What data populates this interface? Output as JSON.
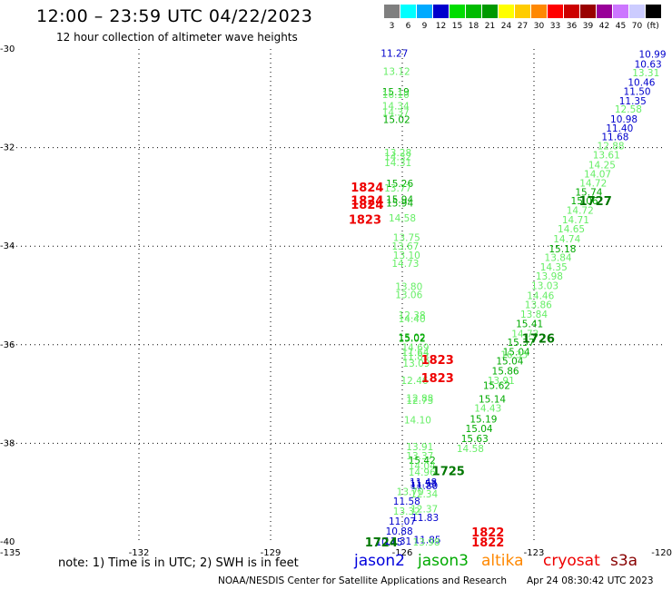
{
  "header": {
    "title": "12:00 – 23:59 UTC 04/22/2023",
    "subtitle": "12 hour collection of altimeter wave heights"
  },
  "scale": {
    "unit": "(ft)",
    "bins": [
      {
        "label": "3",
        "color": "#7f7f7f"
      },
      {
        "label": "6",
        "color": "#00ffff"
      },
      {
        "label": "9",
        "color": "#00aaff"
      },
      {
        "label": "12",
        "color": "#0000cc"
      },
      {
        "label": "15",
        "color": "#00dd00"
      },
      {
        "label": "18",
        "color": "#00bb00"
      },
      {
        "label": "21",
        "color": "#009900"
      },
      {
        "label": "24",
        "color": "#ffff00"
      },
      {
        "label": "27",
        "color": "#ffcc00"
      },
      {
        "label": "30",
        "color": "#ff8800"
      },
      {
        "label": "33",
        "color": "#ff0000"
      },
      {
        "label": "36",
        "color": "#cc0000"
      },
      {
        "label": "39",
        "color": "#990000"
      },
      {
        "label": "42",
        "color": "#990099"
      },
      {
        "label": "45",
        "color": "#cc77ff"
      },
      {
        "label": "70",
        "color": "#ccccff"
      },
      {
        "label": "",
        "color": "#000000"
      }
    ]
  },
  "map": {
    "lon_range": [
      -135,
      -120
    ],
    "lat_range": [
      -40,
      -30
    ],
    "lon_ticks": [
      "-135",
      "-132",
      "-129",
      "-126",
      "-123",
      "-120"
    ],
    "lat_ticks": [
      "-30",
      "-32",
      "-34",
      "-36",
      "-38",
      "-40"
    ],
    "grid": "dotted",
    "colors": {
      "jason2": "#0000cc",
      "jason3": "#00aa00",
      "light": "#66ee66",
      "time_red": "#ee0000",
      "time_green": "#007700"
    }
  },
  "tracks": [
    {
      "name": "track-west",
      "points": [
        {
          "lon": -126.18,
          "lat": -30.08,
          "v": "11.27",
          "c": "jason2"
        },
        {
          "lon": -126.13,
          "lat": -30.45,
          "v": "13.12",
          "c": "light"
        },
        {
          "lon": -126.15,
          "lat": -30.87,
          "v": "15.19",
          "c": "jason3"
        },
        {
          "lon": -126.15,
          "lat": -30.92,
          "v": "16.10",
          "c": "light"
        },
        {
          "lon": -126.15,
          "lat": -31.15,
          "v": "14.34",
          "c": "light"
        },
        {
          "lon": -126.15,
          "lat": -31.28,
          "v": "14.37",
          "c": "light"
        },
        {
          "lon": -126.13,
          "lat": -31.43,
          "v": "15.02",
          "c": "jason3"
        },
        {
          "lon": -126.1,
          "lat": -32.1,
          "v": "13.28",
          "c": "light"
        },
        {
          "lon": -126.1,
          "lat": -32.18,
          "v": "14.32",
          "c": "light"
        },
        {
          "lon": -126.1,
          "lat": -32.3,
          "v": "14.31",
          "c": "light"
        },
        {
          "lon": -126.06,
          "lat": -32.73,
          "v": "15.26",
          "c": "jason3"
        },
        {
          "lon": -126.1,
          "lat": -32.82,
          "v": "13.77",
          "c": "light"
        },
        {
          "lon": -126.06,
          "lat": -33.05,
          "v": "15.94",
          "c": "jason3"
        },
        {
          "lon": -126.06,
          "lat": -33.12,
          "v": "15.94",
          "c": "jason3"
        },
        {
          "lon": -126.0,
          "lat": -33.43,
          "v": "14.58",
          "c": "light"
        },
        {
          "lon": -125.9,
          "lat": -33.82,
          "v": "13.75",
          "c": "light"
        },
        {
          "lon": -125.93,
          "lat": -34.0,
          "v": "13.67",
          "c": "light"
        },
        {
          "lon": -125.9,
          "lat": -34.18,
          "v": "13.10",
          "c": "light"
        },
        {
          "lon": -125.93,
          "lat": -34.35,
          "v": "14.73",
          "c": "light"
        },
        {
          "lon": -125.85,
          "lat": -34.82,
          "v": "13.80",
          "c": "light"
        },
        {
          "lon": -125.85,
          "lat": -34.98,
          "v": "13.06",
          "c": "light"
        },
        {
          "lon": -125.78,
          "lat": -35.4,
          "v": "12.38",
          "c": "light"
        },
        {
          "lon": -125.78,
          "lat": -35.47,
          "v": "14.40",
          "c": "light"
        },
        {
          "lon": -125.78,
          "lat": -35.85,
          "v": "15.02",
          "c": "jason3"
        },
        {
          "lon": -125.78,
          "lat": -35.87,
          "v": "15.02",
          "c": "jason3"
        },
        {
          "lon": -125.7,
          "lat": -36.05,
          "v": "14.69",
          "c": "light"
        },
        {
          "lon": -125.7,
          "lat": -36.15,
          "v": "11.64",
          "c": "light"
        },
        {
          "lon": -125.7,
          "lat": -36.23,
          "v": "11.83",
          "c": "light"
        },
        {
          "lon": -125.68,
          "lat": -36.37,
          "v": "13.09",
          "c": "light"
        },
        {
          "lon": -125.72,
          "lat": -36.72,
          "v": "12.46",
          "c": "light"
        },
        {
          "lon": -125.6,
          "lat": -37.08,
          "v": "12.88",
          "c": "light"
        },
        {
          "lon": -125.6,
          "lat": -37.13,
          "v": "12.73",
          "c": "light"
        },
        {
          "lon": -125.65,
          "lat": -37.52,
          "v": "14.10",
          "c": "light"
        },
        {
          "lon": -125.6,
          "lat": -38.07,
          "v": "13.91",
          "c": "light"
        },
        {
          "lon": -125.6,
          "lat": -38.25,
          "v": "13.37",
          "c": "light"
        },
        {
          "lon": -125.55,
          "lat": -38.34,
          "v": "15.42",
          "c": "jason3"
        },
        {
          "lon": -125.55,
          "lat": -38.45,
          "v": "14.04",
          "c": "light"
        },
        {
          "lon": -125.55,
          "lat": -38.58,
          "v": "14.96",
          "c": "light"
        },
        {
          "lon": -125.52,
          "lat": -38.78,
          "v": "11.48",
          "c": "jason2"
        },
        {
          "lon": -125.52,
          "lat": -38.82,
          "v": "11.53",
          "c": "jason2"
        },
        {
          "lon": -125.5,
          "lat": -38.86,
          "v": "11.80",
          "c": "jason2"
        },
        {
          "lon": -125.82,
          "lat": -38.98,
          "v": "13.70",
          "c": "light"
        },
        {
          "lon": -125.5,
          "lat": -39.02,
          "v": "12.34",
          "c": "light"
        },
        {
          "lon": -125.9,
          "lat": -39.17,
          "v": "11.58",
          "c": "jason2"
        },
        {
          "lon": -125.9,
          "lat": -39.37,
          "v": "13.32",
          "c": "light"
        },
        {
          "lon": -125.5,
          "lat": -39.33,
          "v": "12.37",
          "c": "light"
        },
        {
          "lon": -125.48,
          "lat": -39.5,
          "v": "11.83",
          "c": "jason2"
        },
        {
          "lon": -126.0,
          "lat": -39.58,
          "v": "11.07",
          "c": "jason2"
        },
        {
          "lon": -126.07,
          "lat": -39.78,
          "v": "10.88",
          "c": "jason2"
        },
        {
          "lon": -126.1,
          "lat": -39.98,
          "v": "11.31",
          "c": "jason2"
        },
        {
          "lon": -126.3,
          "lat": -40.0,
          "v": "10.45",
          "c": "jason2"
        },
        {
          "lon": -125.43,
          "lat": -39.95,
          "v": "11.85",
          "c": "jason2"
        },
        {
          "lon": -125.45,
          "lat": -40.0,
          "v": "13.98",
          "c": "light"
        }
      ]
    },
    {
      "name": "track-east",
      "points": [
        {
          "lon": -120.3,
          "lat": -30.1,
          "v": "10.99",
          "c": "jason2"
        },
        {
          "lon": -120.4,
          "lat": -30.3,
          "v": "10.63",
          "c": "jason2"
        },
        {
          "lon": -120.45,
          "lat": -30.48,
          "v": "13.31",
          "c": "light"
        },
        {
          "lon": -120.55,
          "lat": -30.67,
          "v": "10.46",
          "c": "jason2"
        },
        {
          "lon": -120.65,
          "lat": -30.86,
          "v": "11.50",
          "c": "jason2"
        },
        {
          "lon": -120.75,
          "lat": -31.05,
          "v": "11.35",
          "c": "jason2"
        },
        {
          "lon": -120.85,
          "lat": -31.22,
          "v": "12.58",
          "c": "light"
        },
        {
          "lon": -120.95,
          "lat": -31.42,
          "v": "10.98",
          "c": "jason2"
        },
        {
          "lon": -121.05,
          "lat": -31.6,
          "v": "11.40",
          "c": "jason2"
        },
        {
          "lon": -121.15,
          "lat": -31.78,
          "v": "11.68",
          "c": "jason2"
        },
        {
          "lon": -121.25,
          "lat": -31.96,
          "v": "12.88",
          "c": "light"
        },
        {
          "lon": -121.35,
          "lat": -32.15,
          "v": "13.61",
          "c": "light"
        },
        {
          "lon": -121.45,
          "lat": -32.35,
          "v": "14.25",
          "c": "light"
        },
        {
          "lon": -121.55,
          "lat": -32.53,
          "v": "14.07",
          "c": "light"
        },
        {
          "lon": -121.65,
          "lat": -32.72,
          "v": "14.72",
          "c": "light"
        },
        {
          "lon": -121.75,
          "lat": -32.9,
          "v": "15.74",
          "c": "jason3"
        },
        {
          "lon": -121.85,
          "lat": -33.08,
          "v": "15.06",
          "c": "jason3"
        },
        {
          "lon": -121.95,
          "lat": -33.27,
          "v": "14.72",
          "c": "light"
        },
        {
          "lon": -122.05,
          "lat": -33.46,
          "v": "14.71",
          "c": "light"
        },
        {
          "lon": -122.15,
          "lat": -33.65,
          "v": "14.65",
          "c": "light"
        },
        {
          "lon": -122.25,
          "lat": -33.85,
          "v": "14.74",
          "c": "light"
        },
        {
          "lon": -122.35,
          "lat": -34.05,
          "v": "15.18",
          "c": "jason3"
        },
        {
          "lon": -122.45,
          "lat": -34.23,
          "v": "13.84",
          "c": "light"
        },
        {
          "lon": -122.55,
          "lat": -34.42,
          "v": "14.35",
          "c": "light"
        },
        {
          "lon": -122.65,
          "lat": -34.6,
          "v": "13.98",
          "c": "light"
        },
        {
          "lon": -122.75,
          "lat": -34.8,
          "v": "13.03",
          "c": "light"
        },
        {
          "lon": -122.85,
          "lat": -35.0,
          "v": "14.46",
          "c": "light"
        },
        {
          "lon": -122.9,
          "lat": -35.18,
          "v": "13.86",
          "c": "light"
        },
        {
          "lon": -123.0,
          "lat": -35.38,
          "v": "13.84",
          "c": "light"
        },
        {
          "lon": -123.1,
          "lat": -35.57,
          "v": "15.41",
          "c": "jason3"
        },
        {
          "lon": -123.2,
          "lat": -35.77,
          "v": "14.73",
          "c": "light"
        },
        {
          "lon": -123.3,
          "lat": -35.95,
          "v": "15.37",
          "c": "jason3"
        },
        {
          "lon": -123.4,
          "lat": -36.14,
          "v": "15.04",
          "c": "jason3"
        },
        {
          "lon": -123.45,
          "lat": -36.2,
          "v": "16.35",
          "c": "light"
        },
        {
          "lon": -123.55,
          "lat": -36.33,
          "v": "15.04",
          "c": "jason3"
        },
        {
          "lon": -123.65,
          "lat": -36.53,
          "v": "15.86",
          "c": "jason3"
        },
        {
          "lon": -123.75,
          "lat": -36.72,
          "v": "13.91",
          "c": "light"
        },
        {
          "lon": -123.85,
          "lat": -36.82,
          "v": "15.62",
          "c": "jason3"
        },
        {
          "lon": -123.95,
          "lat": -37.1,
          "v": "15.14",
          "c": "jason3"
        },
        {
          "lon": -124.05,
          "lat": -37.28,
          "v": "14.43",
          "c": "light"
        },
        {
          "lon": -124.15,
          "lat": -37.5,
          "v": "15.19",
          "c": "jason3"
        },
        {
          "lon": -124.25,
          "lat": -37.7,
          "v": "15.04",
          "c": "jason3"
        },
        {
          "lon": -124.35,
          "lat": -37.9,
          "v": "15.63",
          "c": "jason3"
        },
        {
          "lon": -124.45,
          "lat": -38.1,
          "v": "14.58",
          "c": "light"
        }
      ]
    }
  ],
  "time_labels": [
    {
      "lon": -126.8,
      "lat": -32.8,
      "v": "1824",
      "c": "time_red"
    },
    {
      "lon": -126.8,
      "lat": -33.07,
      "v": "1824",
      "c": "time_red"
    },
    {
      "lon": -126.8,
      "lat": -33.15,
      "v": "1824",
      "c": "time_red"
    },
    {
      "lon": -126.85,
      "lat": -33.45,
      "v": "1823",
      "c": "time_red"
    },
    {
      "lon": -125.2,
      "lat": -36.3,
      "v": "1823",
      "c": "time_red"
    },
    {
      "lon": -125.2,
      "lat": -36.67,
      "v": "1823",
      "c": "time_red"
    },
    {
      "lon": -124.05,
      "lat": -39.8,
      "v": "1822",
      "c": "time_red"
    },
    {
      "lon": -124.05,
      "lat": -40.0,
      "v": "1822",
      "c": "time_red"
    },
    {
      "lon": -121.6,
      "lat": -33.08,
      "v": "1727",
      "c": "time_green"
    },
    {
      "lon": -122.9,
      "lat": -35.87,
      "v": "1726",
      "c": "time_green"
    },
    {
      "lon": -124.95,
      "lat": -38.55,
      "v": "1725",
      "c": "time_green"
    },
    {
      "lon": -126.48,
      "lat": -40.0,
      "v": "1724",
      "c": "time_green"
    }
  ],
  "footer": {
    "note": "note:  1) Time is in UTC; 2) SWH is in feet",
    "satellites": [
      {
        "label": "jason2",
        "color": "#0000dd"
      },
      {
        "label": "jason3",
        "color": "#00aa00"
      },
      {
        "label": "altika",
        "color": "#ff8800"
      },
      {
        "label": "cryosat",
        "color": "#ee0000"
      },
      {
        "label": "s3a",
        "color": "#880000"
      }
    ],
    "credit": "NOAA/NESDIS Center for Satellite Applications and Research",
    "timestamp": "Apr 24 08:30:42 UTC 2023"
  }
}
